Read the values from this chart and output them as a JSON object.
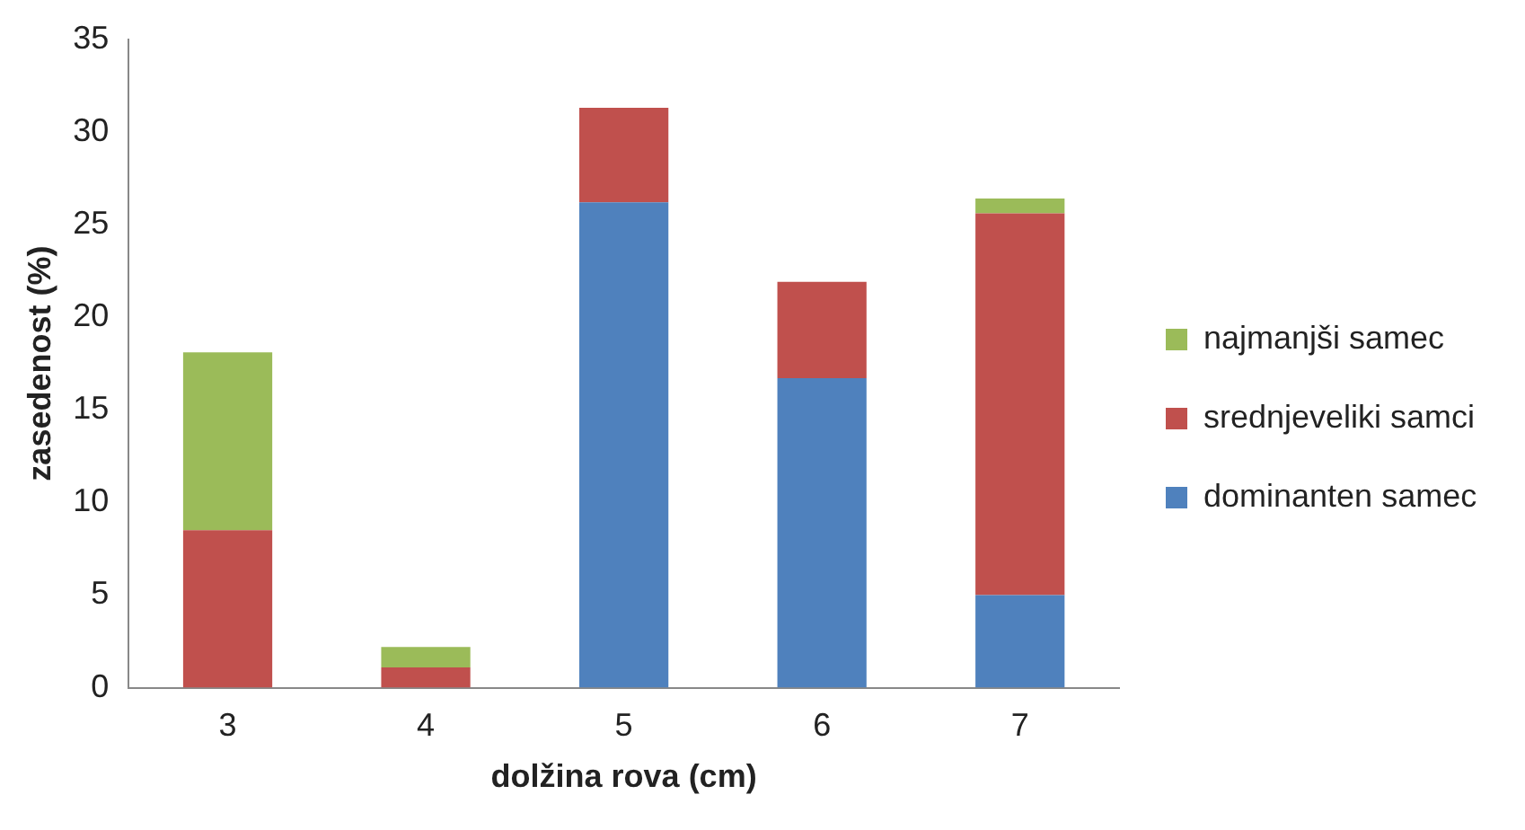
{
  "chart_data": {
    "type": "bar",
    "stacked": true,
    "xlabel": "dolžina rova (cm)",
    "ylabel": "zasedenost (%)",
    "categories": [
      "3",
      "4",
      "5",
      "6",
      "7"
    ],
    "series": [
      {
        "name": "dominanten samec",
        "color": "#4f81bd",
        "values": [
          0,
          0,
          26.2,
          16.7,
          5.0
        ]
      },
      {
        "name": "srednjeveliki samci",
        "color": "#c0504d",
        "values": [
          8.5,
          1.1,
          5.1,
          5.2,
          20.6
        ]
      },
      {
        "name": "najmanjši samec",
        "color": "#9bbb59",
        "values": [
          9.6,
          1.1,
          0,
          0,
          0.8
        ]
      }
    ],
    "ylim": [
      0,
      35
    ],
    "yticks": [
      0,
      5,
      10,
      15,
      20,
      25,
      30,
      35
    ],
    "grid": false,
    "legend": "right"
  }
}
